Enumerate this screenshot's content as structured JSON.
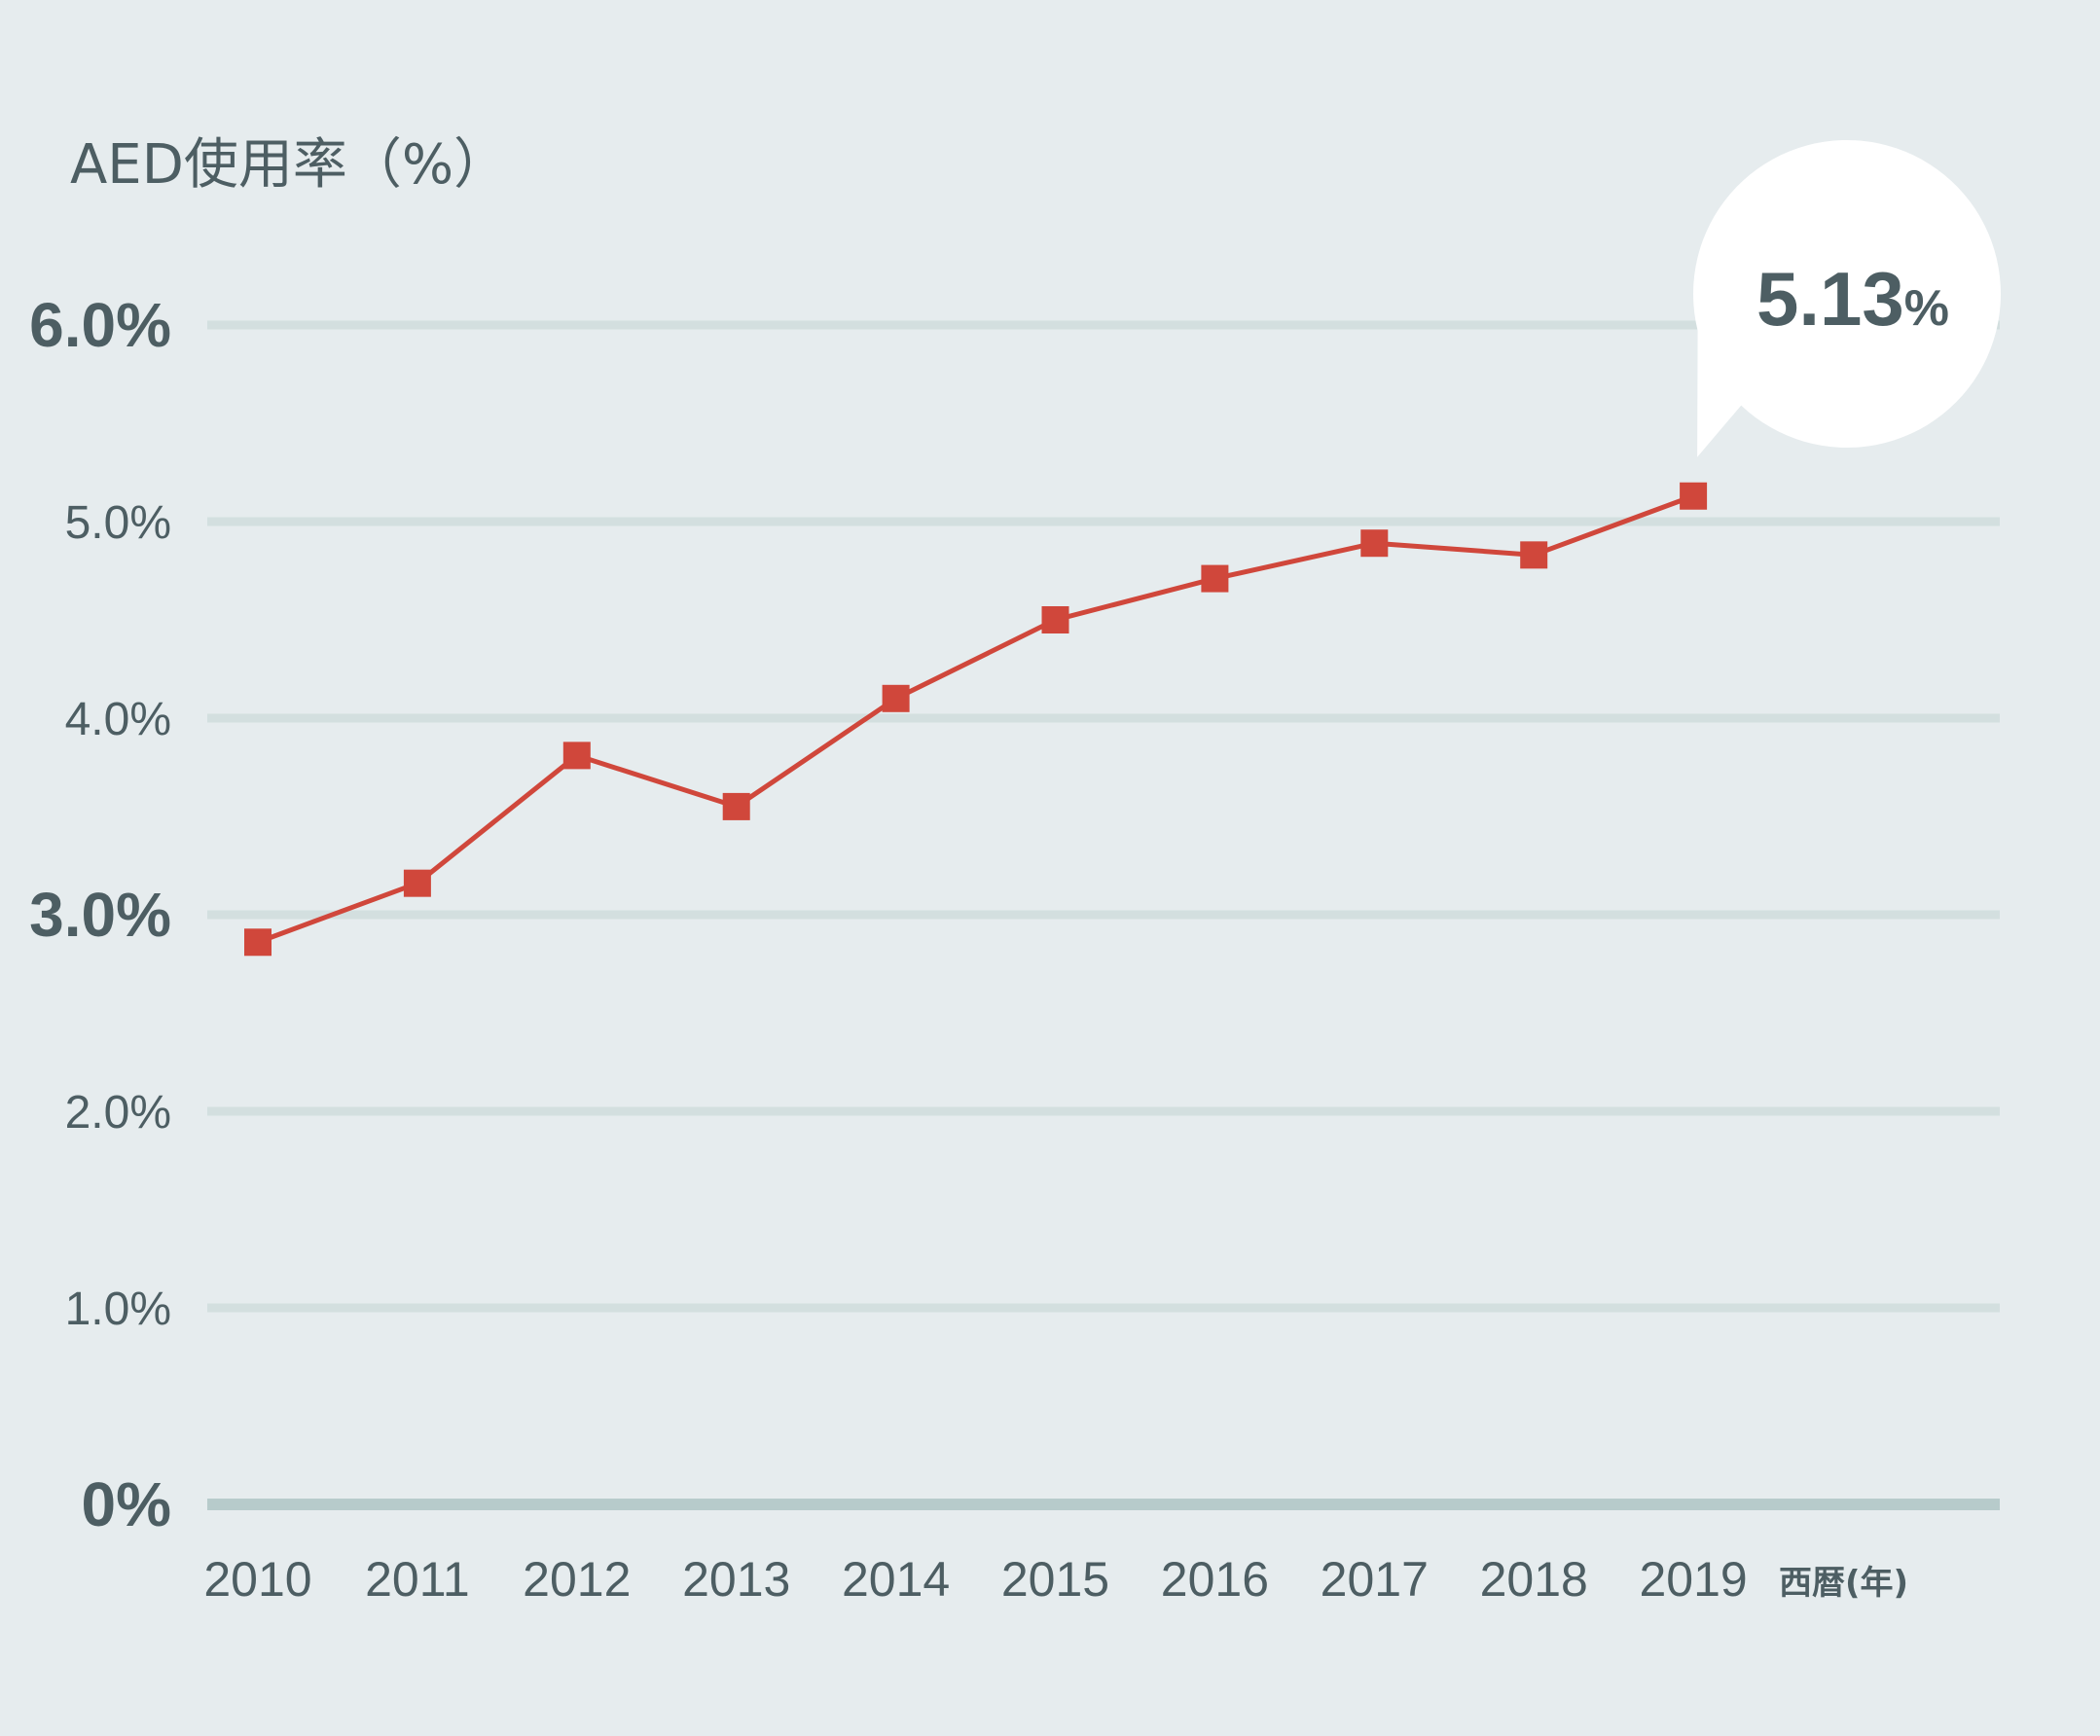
{
  "chart_data": {
    "type": "line",
    "title": "AED使用率（%）",
    "x_unit_label": "西暦(年)",
    "categories": [
      "2010",
      "2011",
      "2012",
      "2013",
      "2014",
      "2015",
      "2016",
      "2017",
      "2018",
      "2019"
    ],
    "series": [
      {
        "values": [
          2.86,
          3.16,
          3.81,
          3.55,
          4.1,
          4.5,
          4.71,
          4.89,
          4.83,
          5.13
        ]
      }
    ],
    "ylim": [
      0,
      6
    ],
    "y_ticks": [
      {
        "value": 0,
        "label": "0%",
        "emphasis": true
      },
      {
        "value": 1,
        "label": "1.0%",
        "emphasis": false
      },
      {
        "value": 2,
        "label": "2.0%",
        "emphasis": false
      },
      {
        "value": 3,
        "label": "3.0%",
        "emphasis": true
      },
      {
        "value": 4,
        "label": "4.0%",
        "emphasis": false
      },
      {
        "value": 5,
        "label": "5.0%",
        "emphasis": false
      },
      {
        "value": 6,
        "label": "6.0%",
        "emphasis": true
      }
    ],
    "grid": true,
    "callout": {
      "category": "2019",
      "value_text": "5.13",
      "unit_text": "%"
    },
    "colors": {
      "line": "#d0473b",
      "marker": "#d0473b",
      "grid": "#d3dfdf",
      "baseline": "#b7cbcb",
      "text": "#4d5e63",
      "background": "#e6ecee",
      "callout_bg": "#ffffff"
    }
  }
}
